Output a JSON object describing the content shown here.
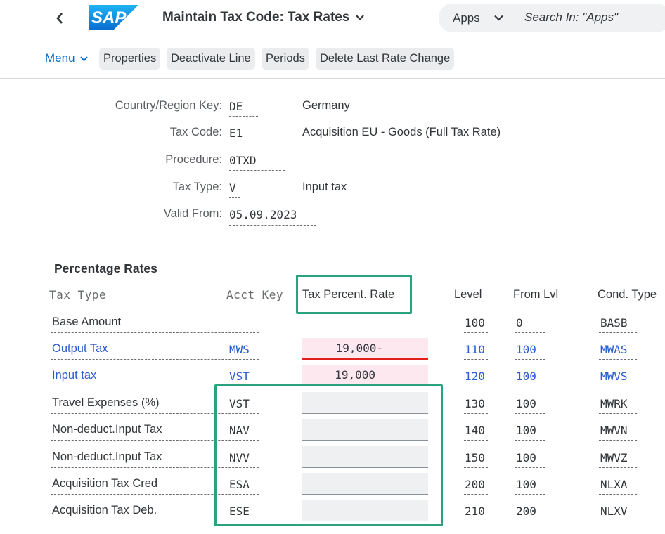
{
  "header": {
    "title": "Maintain Tax Code: Tax Rates",
    "logo_text": "SAP",
    "search_scope": "Apps",
    "search_placeholder": "Search In: \"Apps\""
  },
  "toolbar": {
    "menu_label": "Menu",
    "buttons": [
      "Properties",
      "Deactivate Line",
      "Periods",
      "Delete Last Rate Change"
    ]
  },
  "form": {
    "country": {
      "label": "Country/Region Key:",
      "value": "DE",
      "desc": "Germany"
    },
    "tax_code": {
      "label": "Tax Code:",
      "value": "E1",
      "desc": "Acquisition EU - Goods (Full Tax Rate)"
    },
    "procedure": {
      "label": "Procedure:",
      "value": "0TXD"
    },
    "tax_type": {
      "label": "Tax Type:",
      "value": "V",
      "desc": "Input tax"
    },
    "valid_from": {
      "label": "Valid From:",
      "value": "05.09.2023"
    }
  },
  "table": {
    "section_title": "Percentage Rates",
    "headers": {
      "tax_type": "Tax Type",
      "acct_key": "Acct Key",
      "rate": "Tax Percent. Rate",
      "level": "Level",
      "from_lvl": "From Lvl",
      "cond_type": "Cond. Type"
    },
    "rows": [
      {
        "tax_type": "Base Amount",
        "acct_key": "",
        "rate": "",
        "level": "100",
        "from_lvl": "0",
        "cond_type": "BASB"
      },
      {
        "tax_type": "Output Tax",
        "acct_key": "MWS",
        "rate": "19,000-",
        "level": "110",
        "from_lvl": "100",
        "cond_type": "MWAS"
      },
      {
        "tax_type": "Input tax",
        "acct_key": "VST",
        "rate": "19,000",
        "level": "120",
        "from_lvl": "100",
        "cond_type": "MWVS"
      },
      {
        "tax_type": "Travel Expenses (%)",
        "acct_key": "VST",
        "rate": "",
        "level": "130",
        "from_lvl": "100",
        "cond_type": "MWRK"
      },
      {
        "tax_type": "Non-deduct.Input Tax",
        "acct_key": "NAV",
        "rate": "",
        "level": "140",
        "from_lvl": "100",
        "cond_type": "MWVN"
      },
      {
        "tax_type": "Non-deduct.Input Tax",
        "acct_key": "NVV",
        "rate": "",
        "level": "150",
        "from_lvl": "100",
        "cond_type": "MWVZ"
      },
      {
        "tax_type": "Acquisition Tax Cred",
        "acct_key": "ESA",
        "rate": "",
        "level": "200",
        "from_lvl": "100",
        "cond_type": "NLXA"
      },
      {
        "tax_type": "Acquisition Tax Deb.",
        "acct_key": "ESE",
        "rate": "",
        "level": "210",
        "from_lvl": "200",
        "cond_type": "NLXV"
      }
    ]
  },
  "colors": {
    "link": "#2b5bd1",
    "highlight": "#2aa27e",
    "error": "#e0201a",
    "sap_blue": "#0a6ed1"
  }
}
